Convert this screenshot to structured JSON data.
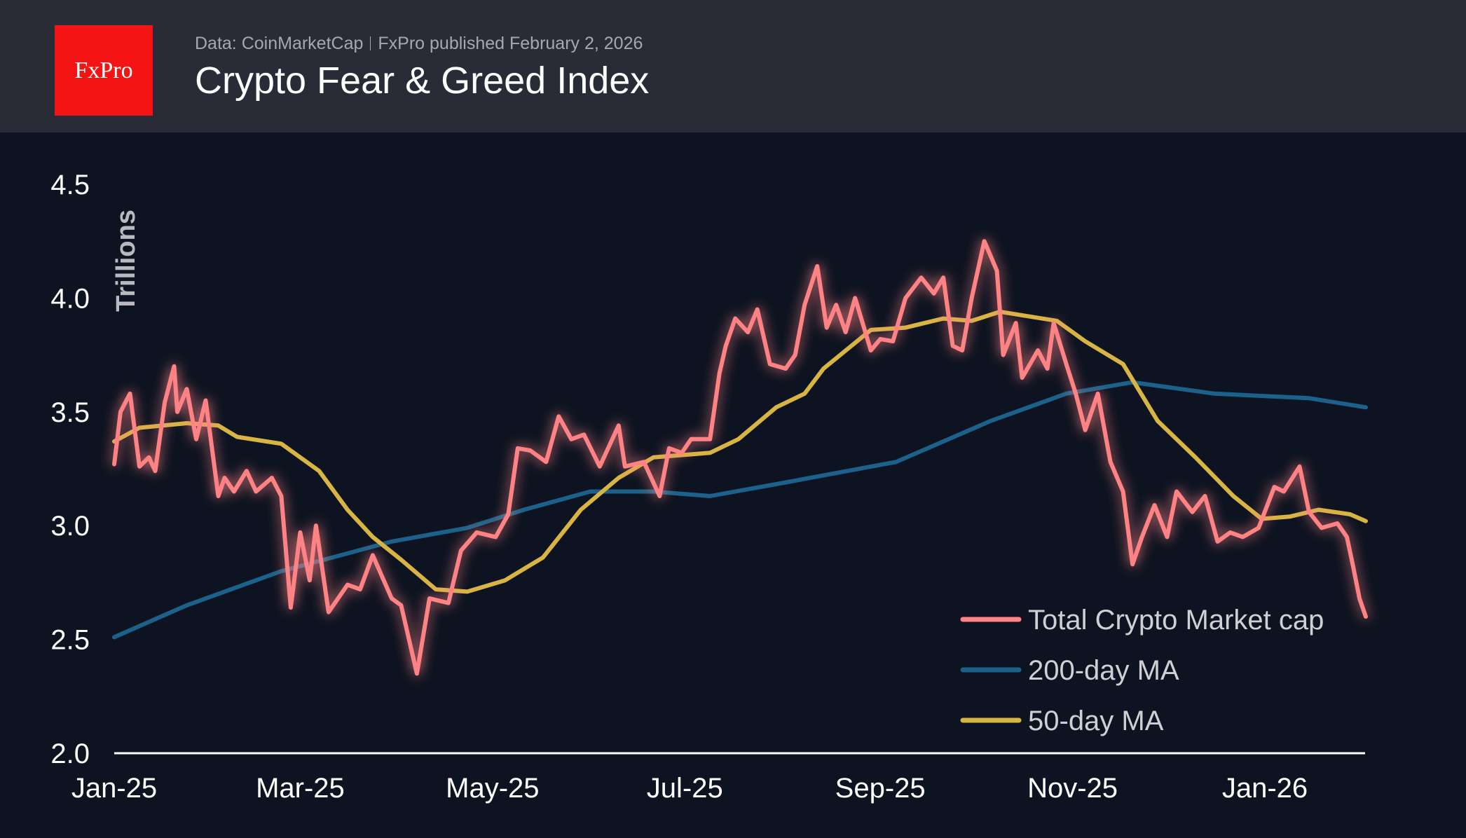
{
  "header": {
    "logo_text": "FxPro",
    "source": "Data: CoinMarketCap",
    "published": "FxPro published February 2, 2026",
    "title": "Crypto Fear & Greed Index"
  },
  "chart_data": {
    "type": "line",
    "title": "Crypto Fear & Greed Index",
    "ylabel": "Trillions",
    "xlabel": "",
    "ylim": [
      2.0,
      4.5
    ],
    "xlim": [
      "2025-01-01",
      "2026-02-02"
    ],
    "yticks": [
      "2.0",
      "2.5",
      "3.0",
      "3.5",
      "4.0",
      "4.5"
    ],
    "xticks": [
      {
        "date": "2025-01-01",
        "label": "Jan-25"
      },
      {
        "date": "2025-03-01",
        "label": "Mar-25"
      },
      {
        "date": "2025-05-01",
        "label": "May-25"
      },
      {
        "date": "2025-07-01",
        "label": "Jul-25"
      },
      {
        "date": "2025-09-01",
        "label": "Sep-25"
      },
      {
        "date": "2025-11-01",
        "label": "Nov-25"
      },
      {
        "date": "2026-01-01",
        "label": "Jan-26"
      }
    ],
    "grid": false,
    "legend_position": "bottom-right",
    "series": [
      {
        "name": "Total Crypto Market cap",
        "color": "#ff8285",
        "points": [
          [
            "2025-01-01",
            3.27
          ],
          [
            "2025-01-03",
            3.5
          ],
          [
            "2025-01-06",
            3.58
          ],
          [
            "2025-01-09",
            3.26
          ],
          [
            "2025-01-12",
            3.3
          ],
          [
            "2025-01-14",
            3.24
          ],
          [
            "2025-01-17",
            3.54
          ],
          [
            "2025-01-20",
            3.7
          ],
          [
            "2025-01-21",
            3.5
          ],
          [
            "2025-01-24",
            3.6
          ],
          [
            "2025-01-27",
            3.38
          ],
          [
            "2025-01-30",
            3.55
          ],
          [
            "2025-02-03",
            3.13
          ],
          [
            "2025-02-05",
            3.21
          ],
          [
            "2025-02-08",
            3.15
          ],
          [
            "2025-02-12",
            3.24
          ],
          [
            "2025-02-15",
            3.15
          ],
          [
            "2025-02-20",
            3.21
          ],
          [
            "2025-02-23",
            3.13
          ],
          [
            "2025-02-26",
            2.64
          ],
          [
            "2025-03-01",
            2.97
          ],
          [
            "2025-03-04",
            2.76
          ],
          [
            "2025-03-06",
            3.0
          ],
          [
            "2025-03-10",
            2.62
          ],
          [
            "2025-03-16",
            2.74
          ],
          [
            "2025-03-20",
            2.72
          ],
          [
            "2025-03-24",
            2.87
          ],
          [
            "2025-03-30",
            2.68
          ],
          [
            "2025-04-02",
            2.65
          ],
          [
            "2025-04-07",
            2.35
          ],
          [
            "2025-04-11",
            2.68
          ],
          [
            "2025-04-17",
            2.66
          ],
          [
            "2025-04-21",
            2.89
          ],
          [
            "2025-04-26",
            2.97
          ],
          [
            "2025-05-02",
            2.95
          ],
          [
            "2025-05-06",
            3.05
          ],
          [
            "2025-05-09",
            3.34
          ],
          [
            "2025-05-13",
            3.33
          ],
          [
            "2025-05-18",
            3.28
          ],
          [
            "2025-05-22",
            3.48
          ],
          [
            "2025-05-26",
            3.38
          ],
          [
            "2025-05-30",
            3.4
          ],
          [
            "2025-06-04",
            3.26
          ],
          [
            "2025-06-10",
            3.44
          ],
          [
            "2025-06-12",
            3.26
          ],
          [
            "2025-06-18",
            3.28
          ],
          [
            "2025-06-23",
            3.13
          ],
          [
            "2025-06-26",
            3.34
          ],
          [
            "2025-06-30",
            3.32
          ],
          [
            "2025-07-03",
            3.38
          ],
          [
            "2025-07-09",
            3.38
          ],
          [
            "2025-07-12",
            3.67
          ],
          [
            "2025-07-14",
            3.79
          ],
          [
            "2025-07-17",
            3.91
          ],
          [
            "2025-07-21",
            3.85
          ],
          [
            "2025-07-24",
            3.95
          ],
          [
            "2025-07-28",
            3.71
          ],
          [
            "2025-08-02",
            3.69
          ],
          [
            "2025-08-05",
            3.75
          ],
          [
            "2025-08-08",
            3.97
          ],
          [
            "2025-08-12",
            4.14
          ],
          [
            "2025-08-15",
            3.87
          ],
          [
            "2025-08-18",
            3.97
          ],
          [
            "2025-08-21",
            3.85
          ],
          [
            "2025-08-24",
            4.0
          ],
          [
            "2025-08-29",
            3.77
          ],
          [
            "2025-09-01",
            3.82
          ],
          [
            "2025-09-05",
            3.81
          ],
          [
            "2025-09-09",
            4.0
          ],
          [
            "2025-09-14",
            4.09
          ],
          [
            "2025-09-18",
            4.02
          ],
          [
            "2025-09-21",
            4.09
          ],
          [
            "2025-09-24",
            3.79
          ],
          [
            "2025-09-27",
            3.77
          ],
          [
            "2025-09-30",
            4.0
          ],
          [
            "2025-10-04",
            4.25
          ],
          [
            "2025-10-08",
            4.12
          ],
          [
            "2025-10-10",
            3.75
          ],
          [
            "2025-10-14",
            3.89
          ],
          [
            "2025-10-16",
            3.65
          ],
          [
            "2025-10-21",
            3.77
          ],
          [
            "2025-10-24",
            3.69
          ],
          [
            "2025-10-26",
            3.89
          ],
          [
            "2025-10-30",
            3.71
          ],
          [
            "2025-11-02",
            3.58
          ],
          [
            "2025-11-05",
            3.42
          ],
          [
            "2025-11-09",
            3.58
          ],
          [
            "2025-11-13",
            3.28
          ],
          [
            "2025-11-17",
            3.15
          ],
          [
            "2025-11-20",
            2.83
          ],
          [
            "2025-11-23",
            2.95
          ],
          [
            "2025-11-27",
            3.09
          ],
          [
            "2025-12-01",
            2.95
          ],
          [
            "2025-12-04",
            3.15
          ],
          [
            "2025-12-09",
            3.06
          ],
          [
            "2025-12-13",
            3.13
          ],
          [
            "2025-12-17",
            2.93
          ],
          [
            "2025-12-21",
            2.97
          ],
          [
            "2025-12-25",
            2.95
          ],
          [
            "2025-12-30",
            2.99
          ],
          [
            "2026-01-04",
            3.17
          ],
          [
            "2026-01-07",
            3.15
          ],
          [
            "2026-01-12",
            3.26
          ],
          [
            "2026-01-15",
            3.06
          ],
          [
            "2026-01-19",
            2.99
          ],
          [
            "2026-01-24",
            3.01
          ],
          [
            "2026-01-27",
            2.95
          ],
          [
            "2026-01-29",
            2.82
          ],
          [
            "2026-01-31",
            2.68
          ],
          [
            "2026-02-02",
            2.6
          ]
        ]
      },
      {
        "name": "200-day MA",
        "color": "#1b6189",
        "points": [
          [
            "2025-01-01",
            2.51
          ],
          [
            "2025-01-24",
            2.65
          ],
          [
            "2025-02-23",
            2.8
          ],
          [
            "2025-03-30",
            2.93
          ],
          [
            "2025-04-23",
            2.99
          ],
          [
            "2025-05-11",
            3.07
          ],
          [
            "2025-06-01",
            3.15
          ],
          [
            "2025-06-21",
            3.15
          ],
          [
            "2025-07-09",
            3.13
          ],
          [
            "2025-08-02",
            3.19
          ],
          [
            "2025-09-06",
            3.28
          ],
          [
            "2025-10-06",
            3.46
          ],
          [
            "2025-10-30",
            3.58
          ],
          [
            "2025-11-20",
            3.63
          ],
          [
            "2025-12-16",
            3.58
          ],
          [
            "2026-01-15",
            3.56
          ],
          [
            "2026-02-02",
            3.52
          ]
        ]
      },
      {
        "name": "50-day MA",
        "color": "#d8b443",
        "points": [
          [
            "2025-01-01",
            3.37
          ],
          [
            "2025-01-09",
            3.43
          ],
          [
            "2025-01-24",
            3.45
          ],
          [
            "2025-02-03",
            3.44
          ],
          [
            "2025-02-09",
            3.39
          ],
          [
            "2025-02-23",
            3.36
          ],
          [
            "2025-03-07",
            3.24
          ],
          [
            "2025-03-16",
            3.07
          ],
          [
            "2025-03-24",
            2.95
          ],
          [
            "2025-04-02",
            2.85
          ],
          [
            "2025-04-13",
            2.72
          ],
          [
            "2025-04-23",
            2.71
          ],
          [
            "2025-05-05",
            2.76
          ],
          [
            "2025-05-17",
            2.86
          ],
          [
            "2025-05-29",
            3.07
          ],
          [
            "2025-06-10",
            3.21
          ],
          [
            "2025-06-21",
            3.3
          ],
          [
            "2025-07-09",
            3.32
          ],
          [
            "2025-07-18",
            3.38
          ],
          [
            "2025-07-30",
            3.52
          ],
          [
            "2025-08-08",
            3.58
          ],
          [
            "2025-08-14",
            3.69
          ],
          [
            "2025-08-29",
            3.86
          ],
          [
            "2025-09-09",
            3.87
          ],
          [
            "2025-09-21",
            3.91
          ],
          [
            "2025-09-30",
            3.9
          ],
          [
            "2025-10-09",
            3.94
          ],
          [
            "2025-10-27",
            3.9
          ],
          [
            "2025-11-05",
            3.81
          ],
          [
            "2025-11-17",
            3.71
          ],
          [
            "2025-11-28",
            3.46
          ],
          [
            "2025-12-10",
            3.3
          ],
          [
            "2025-12-22",
            3.13
          ],
          [
            "2025-12-31",
            3.03
          ],
          [
            "2026-01-09",
            3.04
          ],
          [
            "2026-01-18",
            3.07
          ],
          [
            "2026-01-28",
            3.05
          ],
          [
            "2026-02-02",
            3.02
          ]
        ]
      }
    ]
  }
}
